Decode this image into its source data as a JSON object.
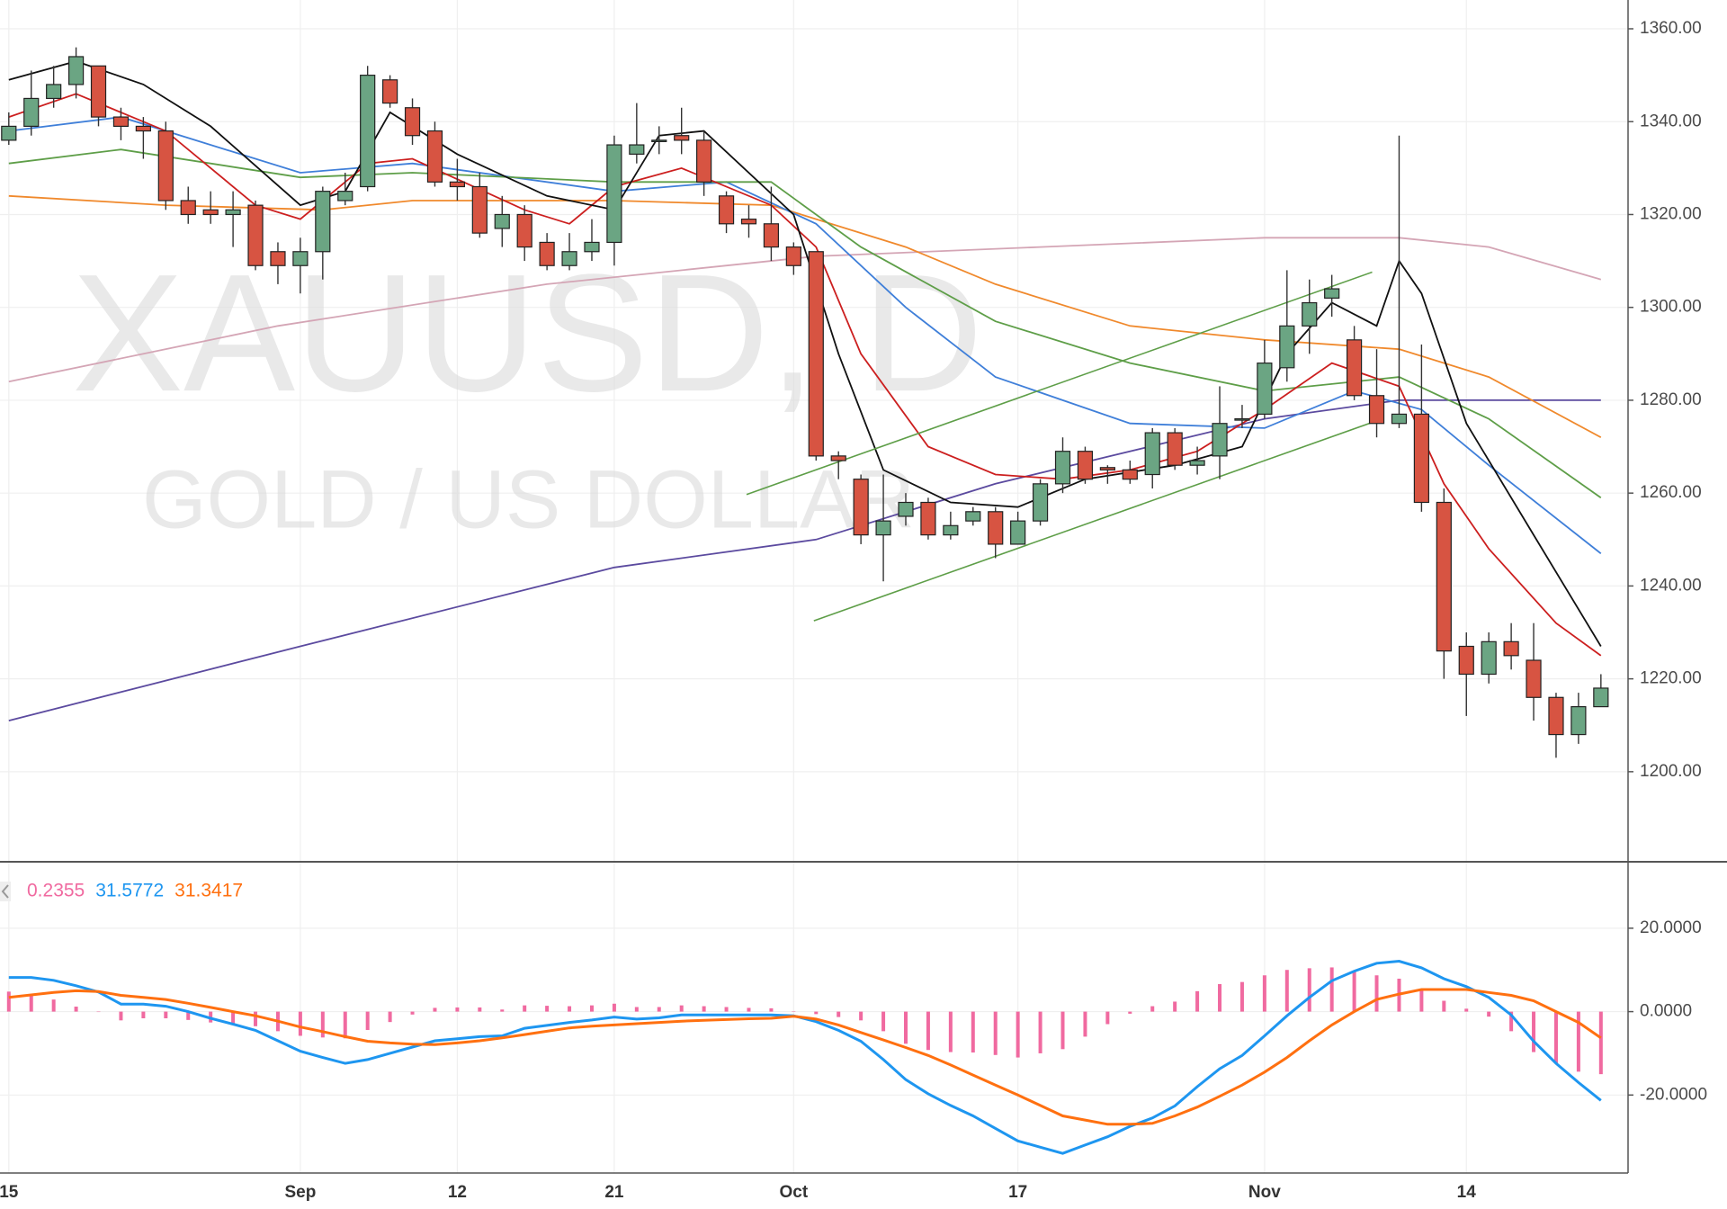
{
  "chart_data": [
    {
      "type": "candlestick",
      "watermark": "XAUUSD, D",
      "watermark_subtitle": "GOLD / US DOLLAR",
      "categories": [
        "15",
        null,
        null,
        null,
        null,
        null,
        null,
        null,
        null,
        null,
        null,
        null,
        null,
        "Sep",
        null,
        null,
        null,
        null,
        null,
        null,
        "12",
        null,
        null,
        null,
        null,
        null,
        null,
        "21",
        null,
        null,
        null,
        null,
        null,
        null,
        null,
        "Oct",
        null,
        null,
        null,
        null,
        null,
        null,
        null,
        null,
        null,
        "17",
        null,
        null,
        null,
        null,
        null,
        null,
        null,
        null,
        null,
        null,
        "Nov",
        null,
        null,
        null,
        null,
        null,
        null,
        null,
        null,
        "14",
        null,
        null,
        null,
        null,
        null,
        null
      ],
      "open": [
        1336,
        1339,
        1345,
        1348,
        1352,
        1341,
        1339,
        1338,
        1323,
        1321,
        1320,
        1322,
        1312,
        1309,
        1312,
        1323,
        1326,
        1349,
        1343,
        1338,
        1327,
        1326,
        1317,
        1320,
        1314,
        1309,
        1312,
        1314,
        1333,
        1336,
        1337,
        1336,
        1324,
        1319,
        1318,
        1313,
        1312,
        1268,
        1263,
        1251,
        1255,
        1258,
        1251,
        1254,
        1256,
        1249,
        1254,
        1262,
        1269,
        1265.5,
        1265,
        1264,
        1273,
        1266,
        1268,
        1276,
        1277,
        1287,
        1296,
        1302,
        1293,
        1281,
        1275,
        1277,
        1258,
        1227,
        1221,
        1228,
        1224,
        1216,
        1208,
        1214
      ],
      "close": [
        1339,
        1345,
        1348,
        1354,
        1341,
        1339,
        1338,
        1323,
        1320,
        1320,
        1321,
        1309,
        1309,
        1312,
        1325,
        1325,
        1350,
        1344,
        1337,
        1327,
        1326,
        1316,
        1320,
        1313,
        1309,
        1312,
        1314,
        1335,
        1335,
        1336,
        1336,
        1327,
        1318,
        1318,
        1313,
        1309,
        1268,
        1267,
        1251,
        1254,
        1258,
        1251,
        1253,
        1256,
        1249,
        1254,
        1262,
        1269,
        1263,
        1265,
        1263,
        1273,
        1266,
        1267,
        1275,
        1276,
        1288,
        1296,
        1301,
        1304,
        1281,
        1275,
        1277,
        1258,
        1226,
        1221,
        1228,
        1225,
        1216,
        1208,
        1214,
        1218
      ],
      "high": [
        1342,
        1351,
        1352,
        1356,
        1352,
        1343,
        1341,
        1340,
        1326,
        1325,
        1325,
        1323,
        1314,
        1315,
        1326,
        1329,
        1352,
        1350,
        1345,
        1340,
        1332,
        1329,
        1324,
        1322,
        1316,
        1316,
        1319,
        1337,
        1344,
        1339,
        1343,
        1338,
        1325,
        1322,
        1326,
        1314,
        1312,
        1269,
        1264,
        1264,
        1260,
        1259,
        1256,
        1257,
        1257,
        1256,
        1263,
        1272,
        1270,
        1266,
        1267,
        1274,
        1274,
        1270,
        1283,
        1279,
        1293,
        1308,
        1306,
        1307,
        1296,
        1291,
        1337,
        1292,
        1261,
        1230,
        1230,
        1232,
        1232,
        1217,
        1217,
        1221
      ],
      "low": [
        1335,
        1337,
        1343,
        1345,
        1339,
        1336,
        1332,
        1321,
        1318,
        1318,
        1313,
        1308,
        1305,
        1303,
        1306,
        1322,
        1325,
        1343,
        1335,
        1326,
        1323,
        1315,
        1313,
        1310,
        1308,
        1308,
        1310,
        1309,
        1331,
        1333,
        1333,
        1324,
        1316,
        1315,
        1310,
        1307,
        1267,
        1263,
        1249,
        1241,
        1253,
        1250,
        1250,
        1253,
        1246,
        1249,
        1253,
        1260,
        1262,
        1262,
        1262,
        1261,
        1265,
        1264,
        1263,
        1274,
        1276,
        1284,
        1290,
        1298,
        1280,
        1272,
        1274,
        1256,
        1220,
        1212,
        1219,
        1222,
        1211,
        1203,
        1206,
        1214
      ],
      "up_color": "#6ba583",
      "down_color": "#d75442",
      "ylim": [
        1180.6,
        1366.2
      ],
      "yticks": [
        {
          "value": 1200,
          "label": "1200.00"
        },
        {
          "value": 1220,
          "label": "1220.00"
        },
        {
          "value": 1240,
          "label": "1240.00"
        },
        {
          "value": 1260,
          "label": "1260.00"
        },
        {
          "value": 1280,
          "label": "1280.00"
        },
        {
          "value": 1300,
          "label": "1300.00"
        },
        {
          "value": 1320,
          "label": "1320.00"
        },
        {
          "value": 1340,
          "label": "1340.00"
        },
        {
          "value": 1360,
          "label": "1360.00"
        }
      ],
      "grid": true,
      "series": [
        {
          "color": "#d4a5b5",
          "x": [
            0,
            12,
            24,
            36,
            46,
            56,
            62,
            66,
            71
          ],
          "values": [
            1284,
            1296,
            1305,
            1311,
            1313,
            1315,
            1315,
            1313,
            1306
          ]
        },
        {
          "color": "#5b4a9f",
          "x": [
            0,
            13,
            27,
            36,
            44,
            56,
            62,
            71
          ],
          "values": [
            1211,
            1227,
            1244,
            1250,
            1262,
            1276,
            1280,
            1280
          ]
        },
        {
          "color": "#f0892c",
          "x": [
            0,
            7,
            14,
            18,
            27,
            34,
            40,
            44,
            50,
            56,
            62,
            66,
            71
          ],
          "values": [
            1324,
            1322,
            1321,
            1323,
            1323,
            1322,
            1313,
            1305,
            1296,
            1293,
            1291,
            1285,
            1272
          ]
        },
        {
          "color": "#3f7fd9",
          "x": [
            0,
            5,
            13,
            18,
            27,
            32,
            36,
            40,
            44,
            50,
            56,
            60,
            63,
            66,
            71
          ],
          "values": [
            1338,
            1341,
            1329,
            1331,
            1325,
            1327,
            1318,
            1300,
            1285,
            1275,
            1274,
            1282,
            1278,
            1266,
            1247
          ]
        },
        {
          "color": "#5e9e48",
          "x": [
            0,
            5,
            13,
            18,
            27,
            34,
            38,
            44,
            50,
            56,
            62,
            66,
            71
          ],
          "values": [
            1331,
            1334,
            1328,
            1329,
            1327,
            1327,
            1313,
            1297,
            1288,
            1282,
            1285,
            1276,
            1259
          ]
        },
        {
          "color": "#cc1f1f",
          "x": [
            0,
            3,
            7,
            11,
            13,
            16,
            18,
            23,
            25,
            27,
            30,
            34,
            36,
            38,
            41,
            44,
            47,
            50,
            53,
            56,
            59,
            62,
            64,
            66,
            69,
            71
          ],
          "values": [
            1341,
            1346,
            1338,
            1322,
            1319,
            1331,
            1332,
            1321,
            1318,
            1326,
            1330,
            1322,
            1313,
            1290,
            1270,
            1264,
            1263,
            1265,
            1269,
            1278,
            1288,
            1283,
            1262,
            1248,
            1232,
            1225
          ]
        },
        {
          "color": "#111111",
          "x": [
            0,
            3,
            6,
            9,
            13,
            15,
            17,
            20,
            24,
            27,
            29,
            31,
            35,
            37,
            39,
            42,
            45,
            48,
            52,
            55,
            57,
            59,
            61,
            62,
            63,
            65,
            68,
            71
          ],
          "values": [
            1349,
            1353,
            1348,
            1339,
            1322,
            1325,
            1342,
            1333,
            1324,
            1321,
            1337,
            1338,
            1320,
            1290,
            1265,
            1258,
            1257,
            1263,
            1266,
            1270,
            1290,
            1301,
            1296,
            1310,
            1303,
            1275,
            1251,
            1227
          ]
        }
      ],
      "trend_lines": [
        {
          "color": "#5e9e48",
          "x": [
            32.9,
            60.8
          ],
          "values": [
            1259.7,
            1307.6
          ]
        },
        {
          "color": "#5e9e48",
          "x": [
            35.9,
            61.3
          ],
          "values": [
            1232.5,
            1276.1
          ]
        }
      ]
    },
    {
      "type": "macd",
      "readout": [
        0.2355,
        31.5772,
        31.3417
      ],
      "ylim": [
        -38.7,
        35.5
      ],
      "yticks": [
        {
          "value": -20,
          "label": "-20.0000"
        },
        {
          "value": 0,
          "label": "0.0000"
        },
        {
          "value": 20,
          "label": "20.0000"
        }
      ],
      "grid": true,
      "series": [
        {
          "kind": "histogram",
          "color": "#f06aa0",
          "values": [
            4.8,
            4.2,
            2.9,
            1.2,
            -0.1,
            -2.1,
            -1.6,
            -1.6,
            -2,
            -2.6,
            -3,
            -3.5,
            -4.7,
            -5.8,
            -6.2,
            -6.4,
            -4.4,
            -2.5,
            -0.7,
            0.9,
            1,
            1,
            0.5,
            1.5,
            1.4,
            1.3,
            1.5,
            1.9,
            1.1,
            1.1,
            1.5,
            1.3,
            1.1,
            0.9,
            0.8,
            0.1,
            -0.6,
            -1.3,
            -2.1,
            -4.7,
            -7.7,
            -9.2,
            -9.7,
            -9.8,
            -10.4,
            -11,
            -10,
            -9,
            -6,
            -3,
            -0.5,
            1.3,
            2.4,
            4.9,
            6.6,
            7.1,
            8.7,
            10,
            10.4,
            10.6,
            9.7,
            8.7,
            7.9,
            5.2,
            2.6,
            0.7,
            -1.2,
            -4.7,
            -9.7,
            -12.4,
            -14.4,
            -15
          ]
        },
        {
          "kind": "line",
          "color": "#1e96f0",
          "values": [
            8.2,
            8.2,
            7.5,
            6.2,
            4.7,
            1.8,
            1.8,
            1.3,
            0,
            -1.6,
            -3,
            -4.5,
            -7,
            -9.5,
            -11,
            -12.4,
            -11.5,
            -10,
            -8.5,
            -7,
            -6.5,
            -6,
            -5.8,
            -4,
            -3.3,
            -2.6,
            -2,
            -1.3,
            -1.8,
            -1.5,
            -0.8,
            -0.8,
            -0.8,
            -0.8,
            -0.8,
            -1,
            -2.4,
            -4.5,
            -7.1,
            -11.5,
            -16.3,
            -19.7,
            -22.5,
            -25,
            -28,
            -31,
            -32.5,
            -34,
            -32,
            -30,
            -27.5,
            -25.5,
            -22.6,
            -18,
            -13.7,
            -10.5,
            -5.8,
            -1,
            3.4,
            7.4,
            9.7,
            11.6,
            12.1,
            10.5,
            7.9,
            6,
            3.4,
            -0.8,
            -7.1,
            -12.4,
            -17,
            -21.3
          ]
        },
        {
          "kind": "line",
          "color": "#ff7010",
          "values": [
            3.4,
            4,
            4.6,
            5,
            4.8,
            3.9,
            3.4,
            2.9,
            2,
            1,
            0,
            -1,
            -2.3,
            -3.7,
            -4.8,
            -6,
            -7.1,
            -7.5,
            -7.8,
            -7.9,
            -7.5,
            -7,
            -6.3,
            -5.5,
            -4.7,
            -3.9,
            -3.5,
            -3.2,
            -2.9,
            -2.6,
            -2.3,
            -2.1,
            -1.9,
            -1.7,
            -1.6,
            -1.1,
            -1.8,
            -3.2,
            -5,
            -6.8,
            -8.6,
            -10.5,
            -12.8,
            -15.2,
            -17.6,
            -20,
            -22.5,
            -25,
            -26,
            -27,
            -27,
            -26.8,
            -25,
            -22.9,
            -20.3,
            -17.6,
            -14.5,
            -11,
            -7,
            -3.2,
            0,
            2.9,
            4.2,
            5.3,
            5.3,
            5.3,
            4.6,
            3.9,
            2.6,
            0,
            -2.6,
            -6.3
          ]
        }
      ]
    }
  ]
}
